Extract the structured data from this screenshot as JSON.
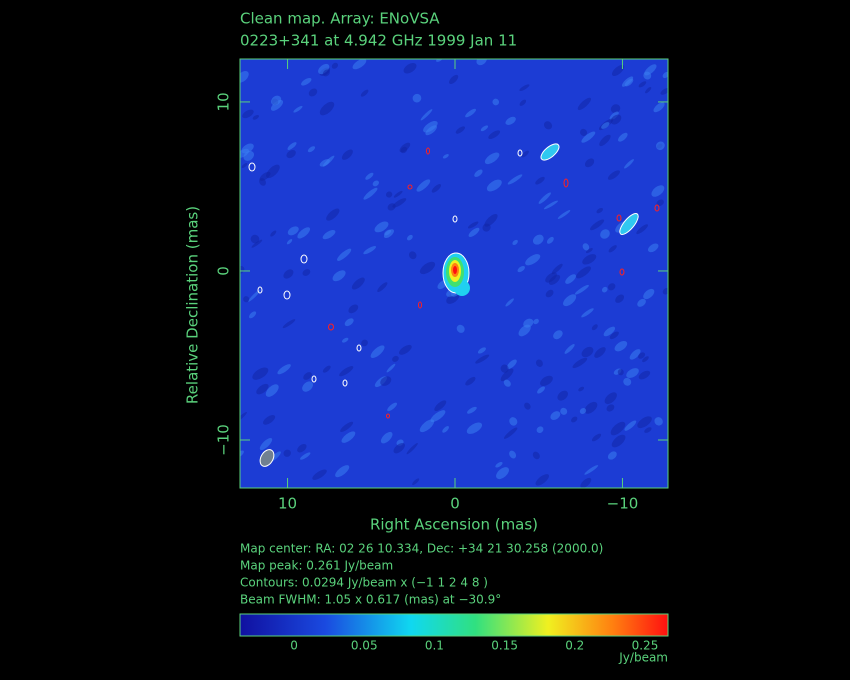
{
  "chart_data": {
    "type": "image",
    "title": "Clean map.  Array: ENoVSA",
    "subtitle": "0223+341 at 4.942 GHz 1999 Jan 11",
    "x_label": "Right Ascension  (mas)",
    "y_label": "Relative Declination  (mas)",
    "xlim": [
      12.84,
      -12.72
    ],
    "ylim": [
      -12.84,
      12.54
    ],
    "xticks": [
      10,
      0,
      {
        "value": -10,
        "label": "−10"
      }
    ],
    "yticks": [
      {
        "value": -10,
        "label": "−10"
      },
      0,
      10
    ],
    "notes": [
      "Map center:  RA: 02 26 10.334,  Dec: +34 21 30.258 (2000.0)",
      "Map peak: 0.261 Jy/beam",
      "Contours: 0.0294 Jy/beam x (−1 1 2 4 8 )",
      "Beam FWHM: 1.05 x 0.617 (mas) at −30.9°"
    ],
    "colorbar": {
      "label": "Jy/beam",
      "lim": [
        -0.0385,
        0.2664
      ],
      "ticks": [
        0,
        0.05,
        0.1,
        0.15,
        0.2,
        0.25
      ]
    }
  }
}
